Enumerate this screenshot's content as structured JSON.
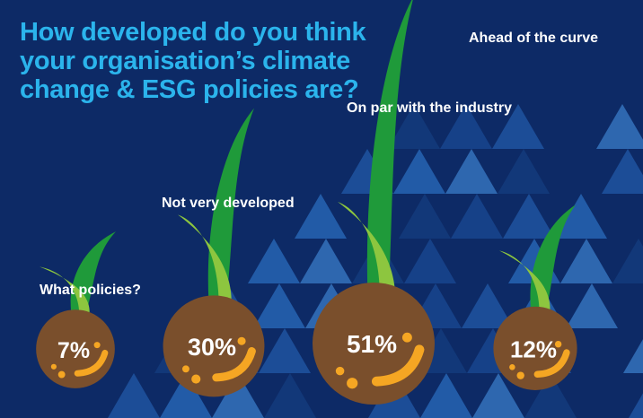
{
  "chart_data": {
    "type": "bar",
    "title": "How developed do you think your organisation’s climate change & ESG policies are?",
    "categories": [
      "What policies?",
      "Not very developed",
      "On par with the industry",
      "Ahead of the curve"
    ],
    "values": [
      7,
      30,
      51,
      12
    ],
    "value_labels": [
      "7%",
      "30%",
      "51%",
      "12%"
    ],
    "unit": "%",
    "xlabel": "",
    "ylabel": ""
  },
  "colors": {
    "background": "#0d2a66",
    "title": "#2bb4ec",
    "seed": "#7a4f2c",
    "seed_highlight": "#f5a623",
    "sprout_light": "#8dc63f",
    "sprout_dark": "#1f9a3a",
    "triangles": [
      "#1a4a94",
      "#215aa8",
      "#2a6cbd",
      "#3a7cc8",
      "#143d80"
    ]
  }
}
